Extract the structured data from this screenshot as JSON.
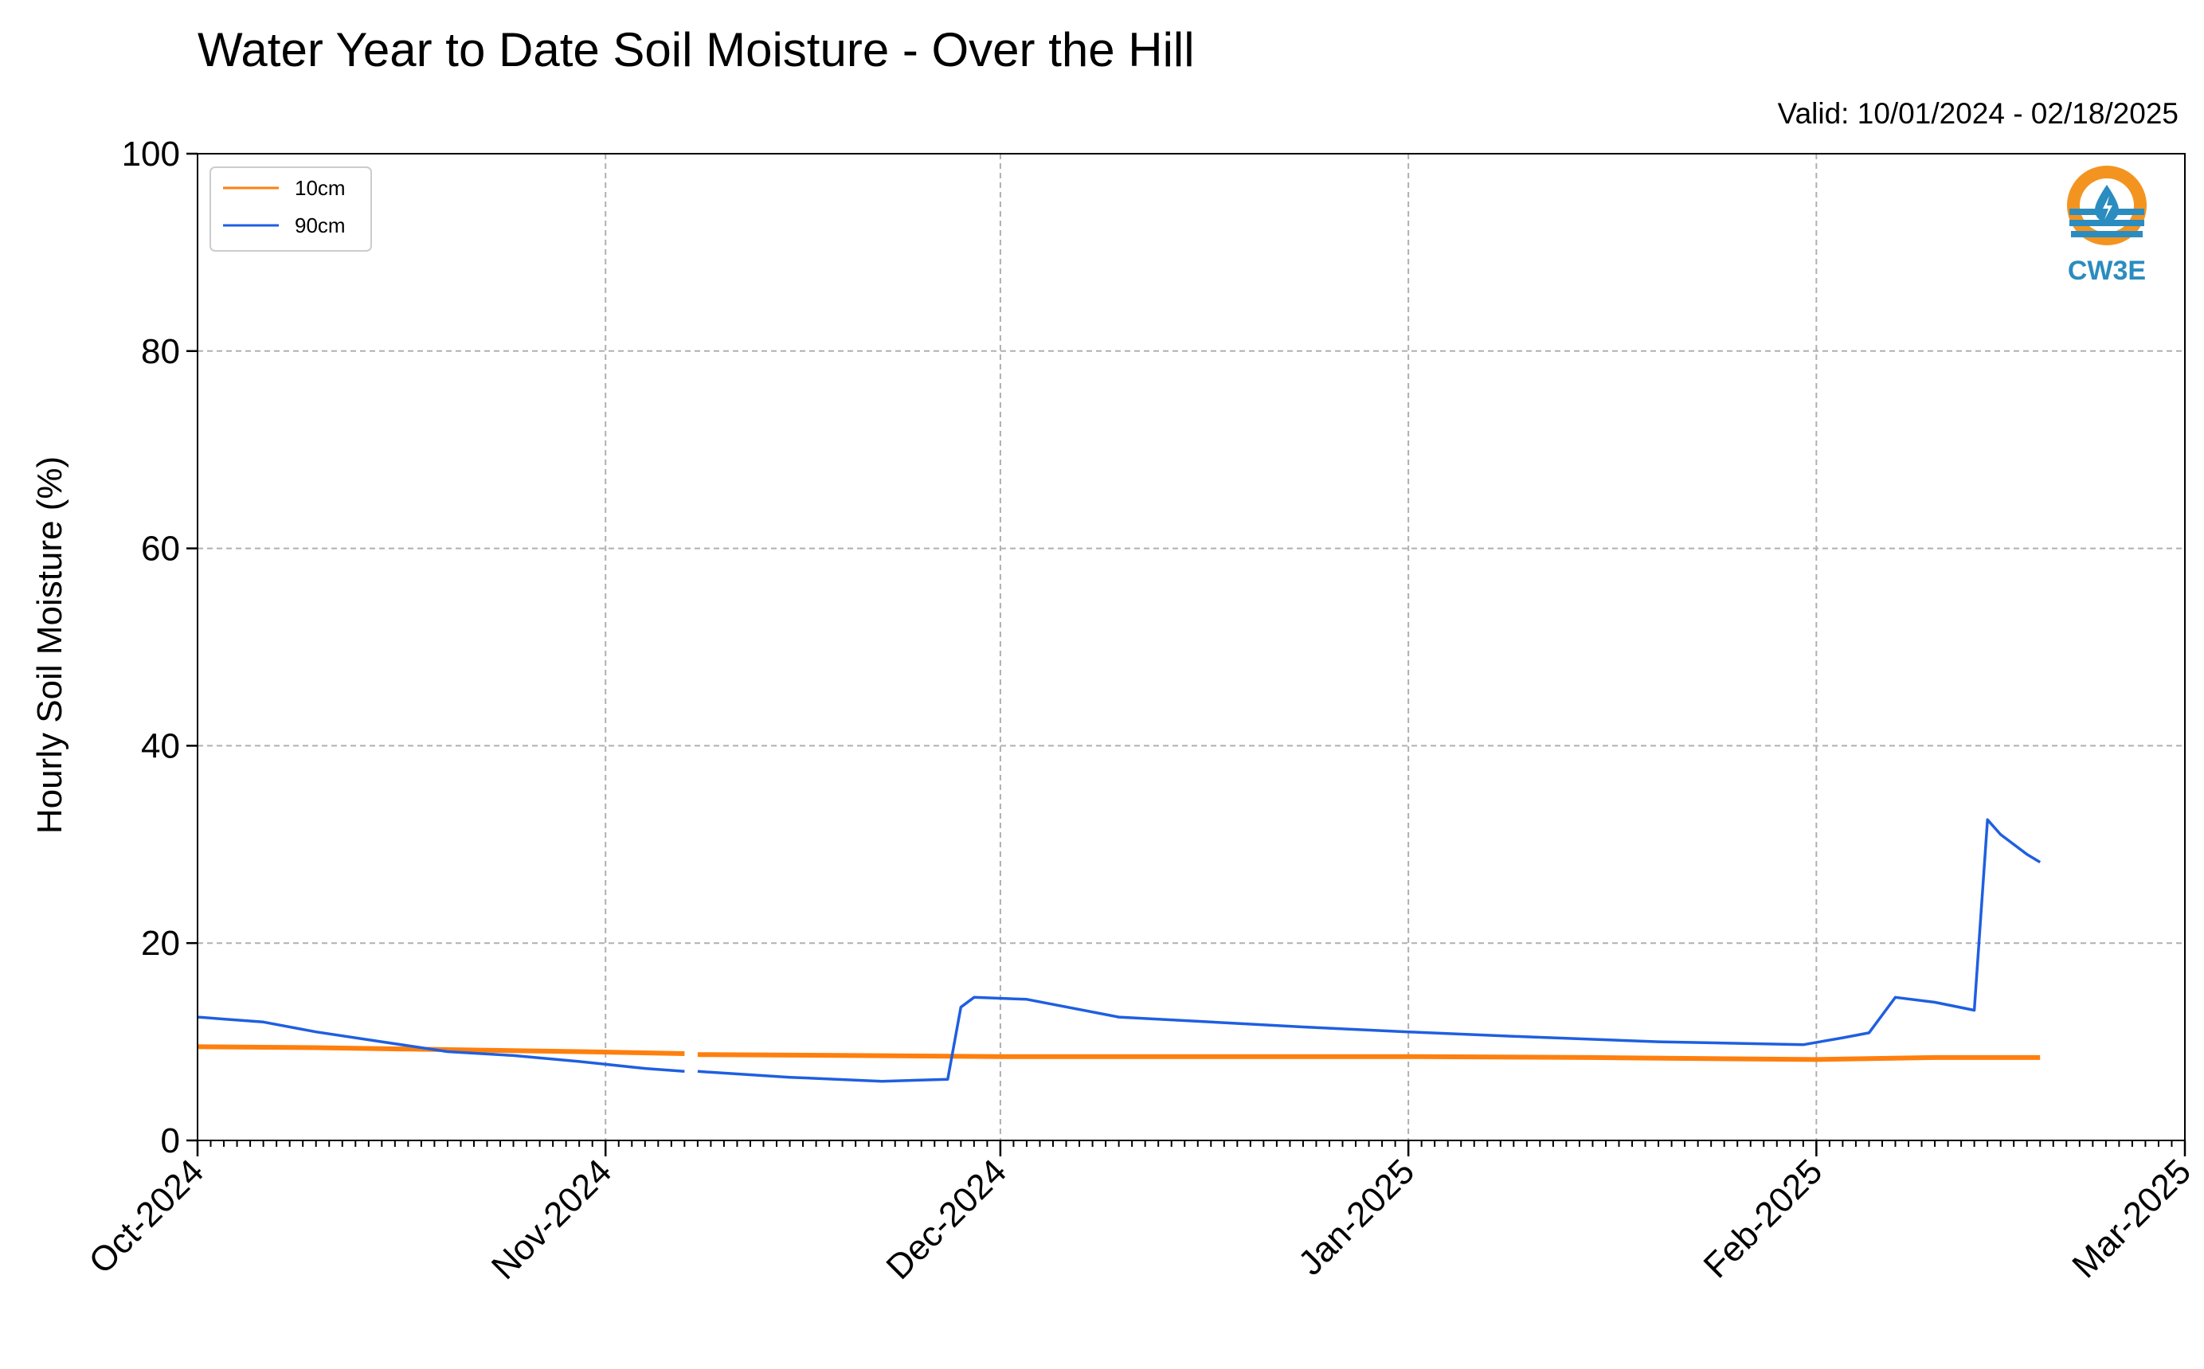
{
  "chart_data": {
    "type": "line",
    "title": "Water Year to Date Soil Moisture - Over the Hill",
    "subtitle": "Valid: 10/01/2024 - 02/18/2025",
    "xlabel": "",
    "ylabel": "Hourly Soil Moisture (%)",
    "x_range": [
      "2024-10-01",
      "2025-03-01"
    ],
    "ylim": [
      0,
      100
    ],
    "y_ticks": [
      0,
      20,
      40,
      60,
      80,
      100
    ],
    "x_ticks": [
      {
        "date": "2024-10-01",
        "label": "Oct-2024"
      },
      {
        "date": "2024-11-01",
        "label": "Nov-2024"
      },
      {
        "date": "2024-12-01",
        "label": "Dec-2024"
      },
      {
        "date": "2025-01-01",
        "label": "Jan-2025"
      },
      {
        "date": "2025-02-01",
        "label": "Feb-2025"
      },
      {
        "date": "2025-03-01",
        "label": "Mar-2025"
      }
    ],
    "grid": true,
    "legend_position": "top-left",
    "logo_text": "CW3E",
    "series": [
      {
        "name": "10cm",
        "color": "#ff7f0e",
        "segments": [
          {
            "x": [
              "2024-10-01",
              "2024-10-10",
              "2024-10-20",
              "2024-10-30",
              "2024-11-07"
            ],
            "y": [
              9.5,
              9.4,
              9.2,
              9.0,
              8.8
            ]
          },
          {
            "x": [
              "2024-11-08",
              "2024-11-20",
              "2024-12-01",
              "2024-12-15",
              "2025-01-01",
              "2025-01-15",
              "2025-02-01",
              "2025-02-10",
              "2025-02-18"
            ],
            "y": [
              8.7,
              8.6,
              8.5,
              8.5,
              8.5,
              8.4,
              8.2,
              8.4,
              8.4
            ]
          }
        ]
      },
      {
        "name": "90cm",
        "color": "#1f5fe0",
        "segments": [
          {
            "x": [
              "2024-10-01",
              "2024-10-03",
              "2024-10-06",
              "2024-10-10",
              "2024-10-15",
              "2024-10-20",
              "2024-10-25",
              "2024-10-30",
              "2024-11-04",
              "2024-11-07"
            ],
            "y": [
              12.5,
              12.3,
              12.0,
              11.0,
              10.0,
              9.0,
              8.6,
              8.0,
              7.3,
              7.0
            ]
          },
          {
            "x": [
              "2024-11-08",
              "2024-11-15",
              "2024-11-22",
              "2024-11-27",
              "2024-11-28",
              "2024-11-29",
              "2024-12-03",
              "2024-12-10",
              "2024-12-17",
              "2024-12-24",
              "2025-01-01",
              "2025-01-10",
              "2025-01-20",
              "2025-01-31",
              "2025-02-03",
              "2025-02-05",
              "2025-02-07",
              "2025-02-10",
              "2025-02-13",
              "2025-02-14",
              "2025-02-15",
              "2025-02-17",
              "2025-02-18"
            ],
            "y": [
              7.0,
              6.4,
              6.0,
              6.2,
              13.5,
              14.5,
              14.3,
              12.5,
              12.0,
              11.5,
              11.0,
              10.5,
              10.0,
              9.7,
              10.4,
              10.9,
              14.5,
              14.0,
              13.2,
              32.5,
              31.0,
              29.0,
              28.2
            ]
          }
        ]
      }
    ]
  }
}
